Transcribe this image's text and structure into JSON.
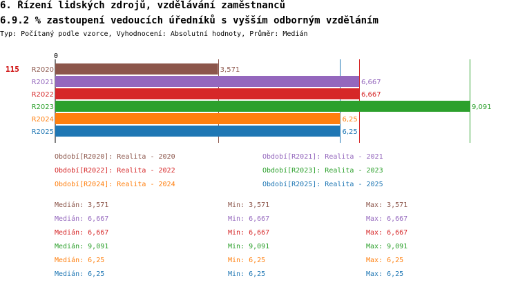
{
  "header": {
    "title": "6. Řízení lidských zdrojů, vzdělávání zaměstnanců",
    "subtitle": "6.9.2 % zastoupení vedoucích úředníků s vyšším odborným vzděláním",
    "meta": "Typ: Počítaný podle vzorce, Vyhodnocení: Absolutní hodnoty, Průměr: Medián"
  },
  "colors": {
    "R2020": "#8c564b",
    "R2021": "#9467bd",
    "R2022": "#d62728",
    "R2023": "#2ca02c",
    "R2024": "#ff7f0e",
    "R2025": "#1f77b4",
    "marker": "#cc0000"
  },
  "chart_data": {
    "type": "bar",
    "orientation": "horizontal",
    "row_label": "115",
    "zero_label": "0",
    "xlim": [
      0,
      9.091
    ],
    "series": [
      {
        "name": "R2020",
        "value": 3.571,
        "label": "3,571"
      },
      {
        "name": "R2021",
        "value": 6.667,
        "label": "6,667"
      },
      {
        "name": "R2022",
        "value": 6.667,
        "label": "6,667"
      },
      {
        "name": "R2023",
        "value": 9.091,
        "label": "9,091"
      },
      {
        "name": "R2024",
        "value": 6.25,
        "label": "6,25"
      },
      {
        "name": "R2025",
        "value": 6.25,
        "label": "6,25"
      }
    ]
  },
  "legend": [
    {
      "key": "R2020",
      "text": "Období[R2020]: Realita - 2020"
    },
    {
      "key": "R2021",
      "text": "Období[R2021]: Realita - 2021"
    },
    {
      "key": "R2022",
      "text": "Období[R2022]: Realita - 2022"
    },
    {
      "key": "R2023",
      "text": "Období[R2023]: Realita - 2023"
    },
    {
      "key": "R2024",
      "text": "Období[R2024]: Realita - 2024"
    },
    {
      "key": "R2025",
      "text": "Období[R2025]: Realita - 2025"
    }
  ],
  "stats": [
    {
      "key": "R2020",
      "median": "Medián: 3,571",
      "min": "Min: 3,571",
      "max": "Max: 3,571"
    },
    {
      "key": "R2021",
      "median": "Medián: 6,667",
      "min": "Min: 6,667",
      "max": "Max: 6,667"
    },
    {
      "key": "R2022",
      "median": "Medián: 6,667",
      "min": "Min: 6,667",
      "max": "Max: 6,667"
    },
    {
      "key": "R2023",
      "median": "Medián: 9,091",
      "min": "Min: 9,091",
      "max": "Max: 9,091"
    },
    {
      "key": "R2024",
      "median": "Medián: 6,25",
      "min": "Min: 6,25",
      "max": "Max: 6,25"
    },
    {
      "key": "R2025",
      "median": "Medián: 6,25",
      "min": "Min: 6,25",
      "max": "Max: 6,25"
    }
  ]
}
